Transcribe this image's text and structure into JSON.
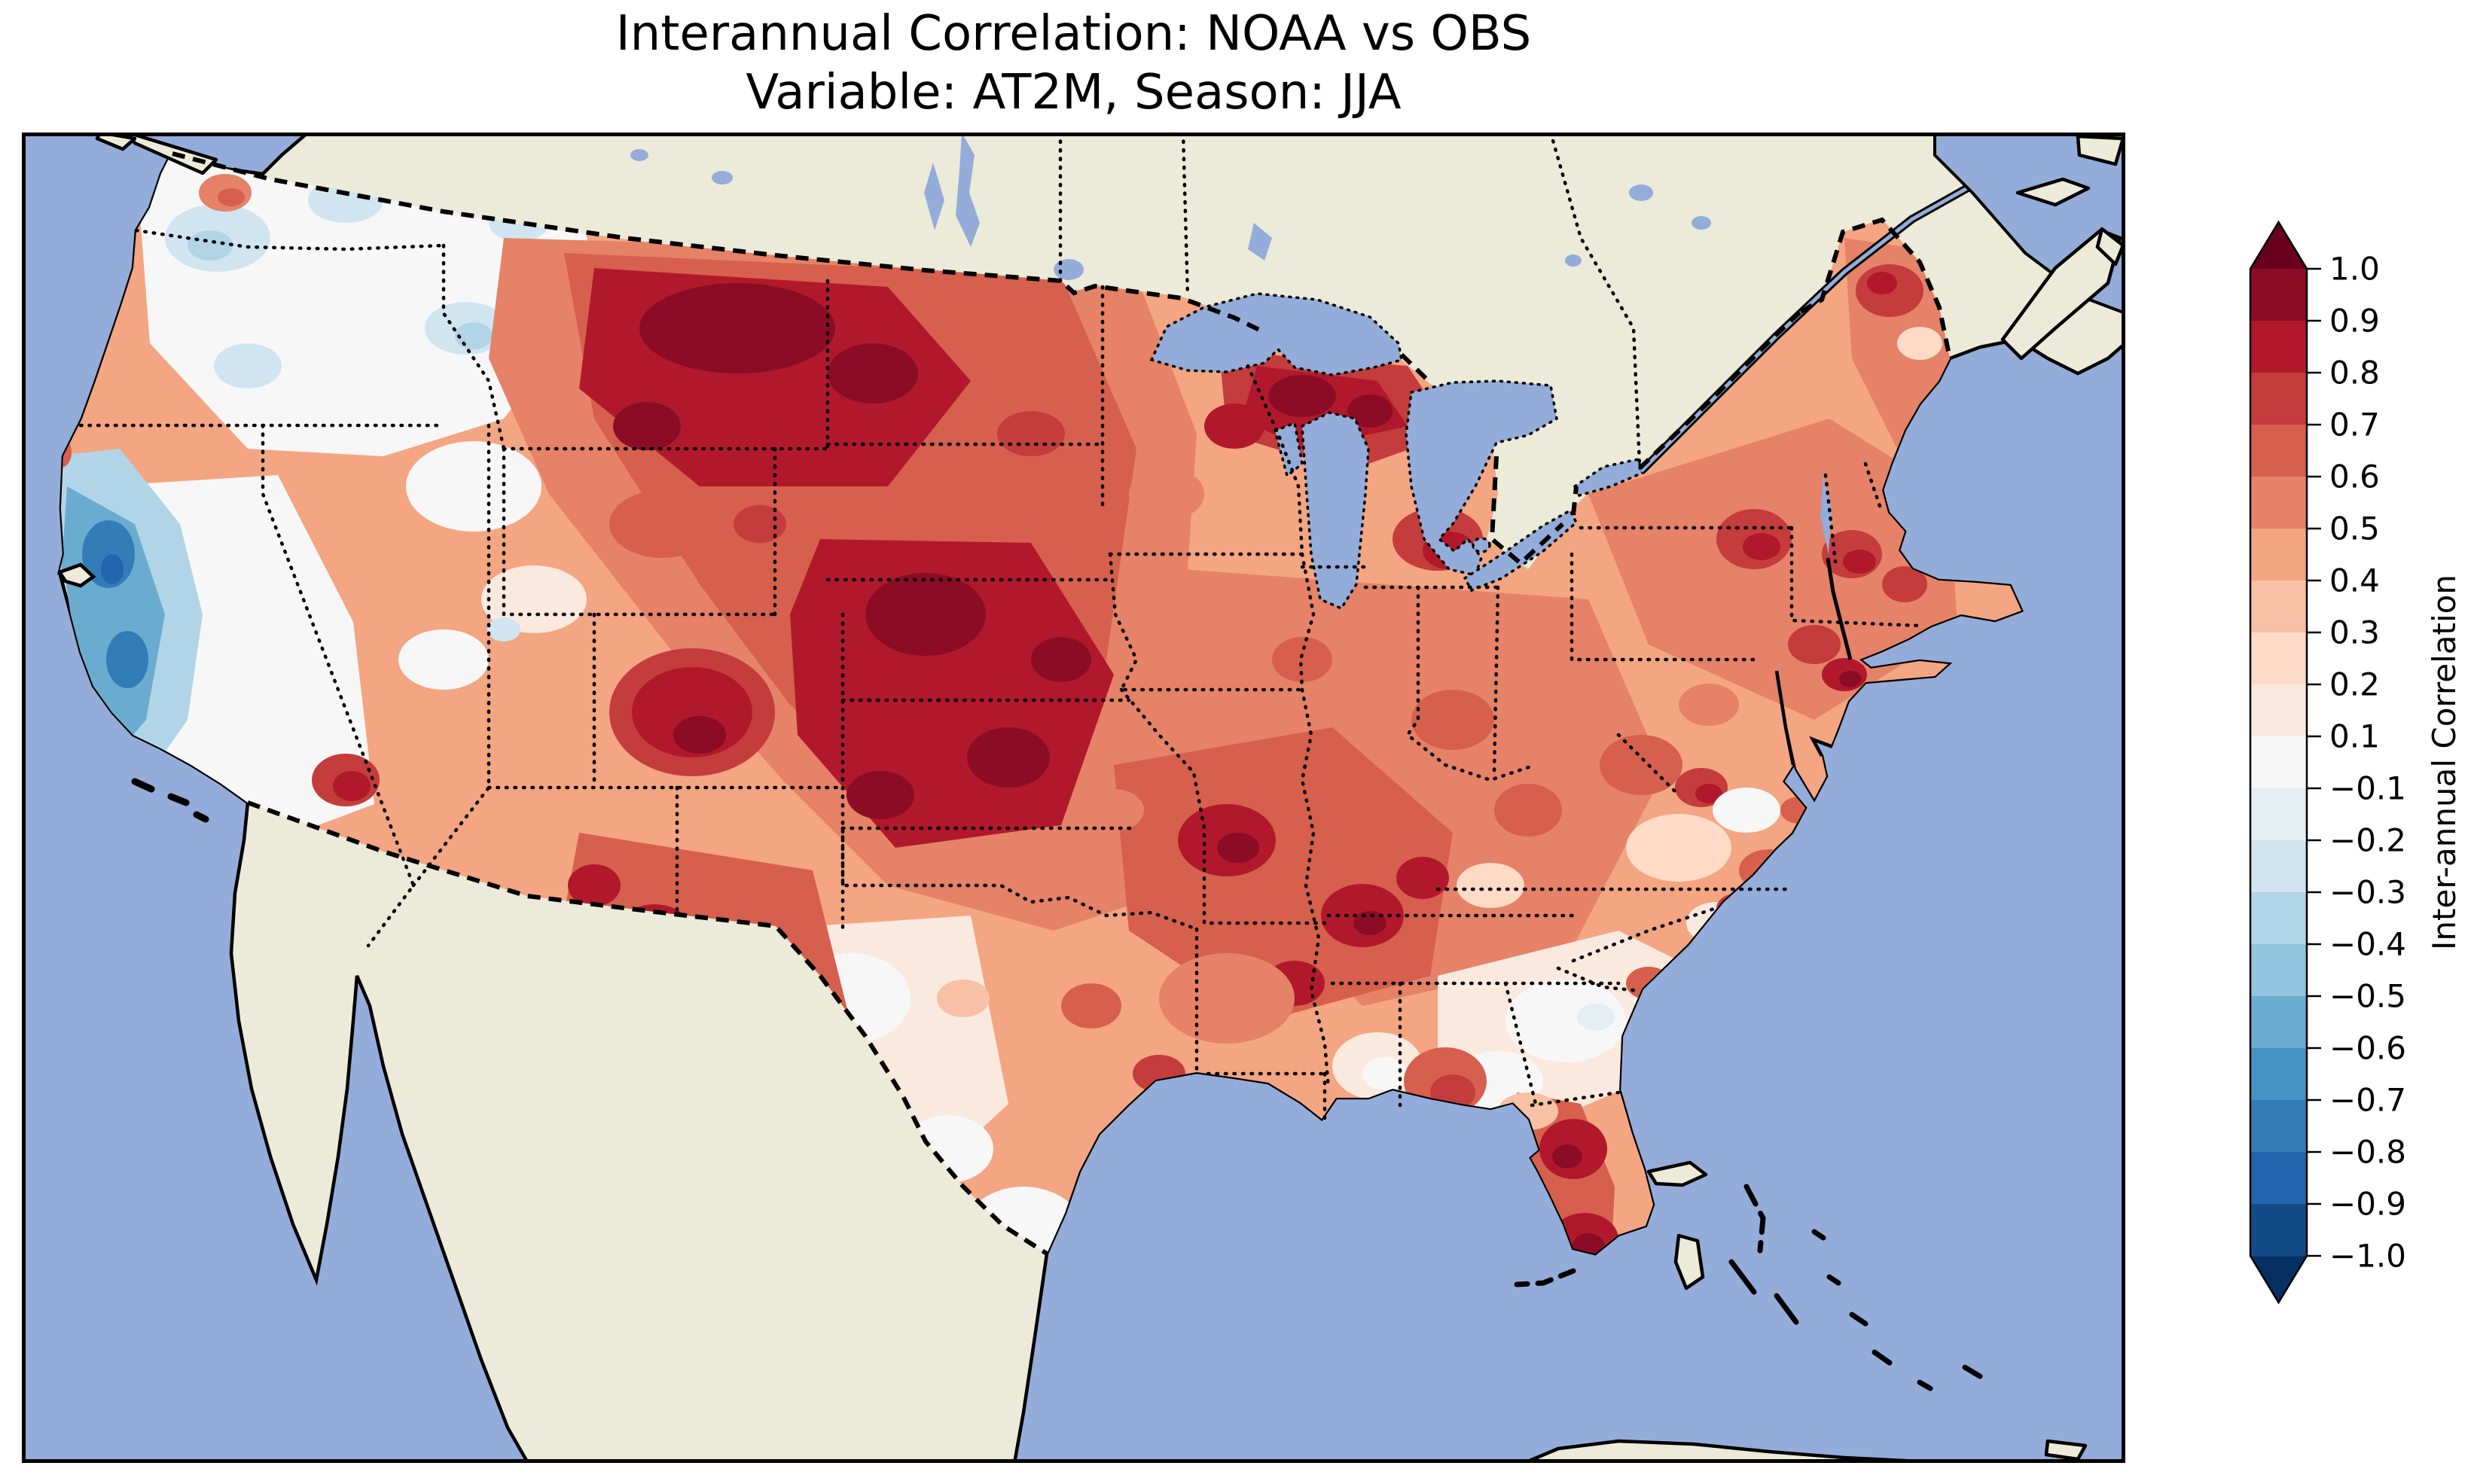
{
  "figure": {
    "title_line1": "Interannual Correlation: NOAA vs OBS",
    "title_line2": "Variable: AT2M, Season: JJA"
  },
  "colorbar": {
    "label": "Inter-annual Correlation",
    "tick_labels": [
      "1.0",
      "0.9",
      "0.8",
      "0.7",
      "0.6",
      "0.5",
      "0.4",
      "0.3",
      "0.2",
      "0.1",
      "−0.1",
      "−0.2",
      "−0.3",
      "−0.4",
      "−0.5",
      "−0.6",
      "−0.7",
      "−0.8",
      "−0.9",
      "−1.0"
    ],
    "band_colors_top_to_bottom": [
      "#8c0c25",
      "#b2182b",
      "#c43c3c",
      "#d6604d",
      "#e58267",
      "#f4a582",
      "#f8c0a4",
      "#fddbc7",
      "#fae9df",
      "#f7f7f7",
      "#e4eef3",
      "#d1e5f0",
      "#b1d5e7",
      "#92c5de",
      "#6aacd0",
      "#4393c3",
      "#327cb8",
      "#2166ac",
      "#134b87"
    ],
    "extend_over_color": "#67001f",
    "extend_under_color": "#053061"
  },
  "map": {
    "ocean_color": "#94acda",
    "land_color": "#ecead8",
    "lake_color": "#94acda",
    "coastline_color": "#000000",
    "border_styles": {
      "country": "dashed",
      "state": "dotted"
    }
  },
  "chart_data": {
    "type": "heatmap",
    "title": "Interannual Correlation: NOAA vs OBS — Variable: AT2M, Season: JJA",
    "variable": "AT2M",
    "season": "JJA",
    "datasets_compared": [
      "NOAA",
      "OBS"
    ],
    "colorbar_label": "Inter-annual Correlation",
    "colormap": "RdBu_r, discrete bands every 0.1 (no 0.0 level), extended triangles at both ends",
    "value_range": [
      -1.0,
      1.0
    ],
    "levels": [
      -1.0,
      -0.9,
      -0.8,
      -0.7,
      -0.6,
      -0.5,
      -0.4,
      -0.3,
      -0.2,
      -0.1,
      0.1,
      0.2,
      0.3,
      0.4,
      0.5,
      0.6,
      0.7,
      0.8,
      0.9,
      1.0
    ],
    "region_values": [
      {
        "region": "Northern Great Plains (MT, ND, SD, WY, NE)",
        "correlation": 0.8
      },
      {
        "region": "Central Plains (KS, MO, IA edges)",
        "correlation": 0.75
      },
      {
        "region": "Upper Michigan / south shore of Lake Superior",
        "correlation": 0.8
      },
      {
        "region": "Colorado Rockies",
        "correlation": 0.75
      },
      {
        "region": "Arizona / New Mexico",
        "correlation": 0.6
      },
      {
        "region": "Mid-South (Ozarks, KY, TN valley)",
        "correlation": 0.65
      },
      {
        "region": "Texas interior",
        "correlation": 0.45
      },
      {
        "region": "Midwest (IL, IN, OH, lower MI)",
        "correlation": 0.5
      },
      {
        "region": "Northeast (NY, New England)",
        "correlation": 0.55
      },
      {
        "region": "Maine",
        "correlation": 0.5
      },
      {
        "region": "Mid-Atlantic / Appalachia",
        "correlation": 0.5
      },
      {
        "region": "Southeast band (GA, SC piedmont)",
        "correlation": 0.1
      },
      {
        "region": "Florida peninsula",
        "correlation": 0.75
      },
      {
        "region": "Pacific Northwest interior (E WA, OR, ID)",
        "correlation": 0.0
      },
      {
        "region": "Eastern WA / OR scattered patches",
        "correlation": -0.2
      },
      {
        "region": "Northern & Central California coast",
        "correlation": -0.5
      },
      {
        "region": "South Texas tip",
        "correlation": 0.0
      },
      {
        "region": "Iowa / Illinois light patches",
        "correlation": 0.15
      }
    ]
  }
}
